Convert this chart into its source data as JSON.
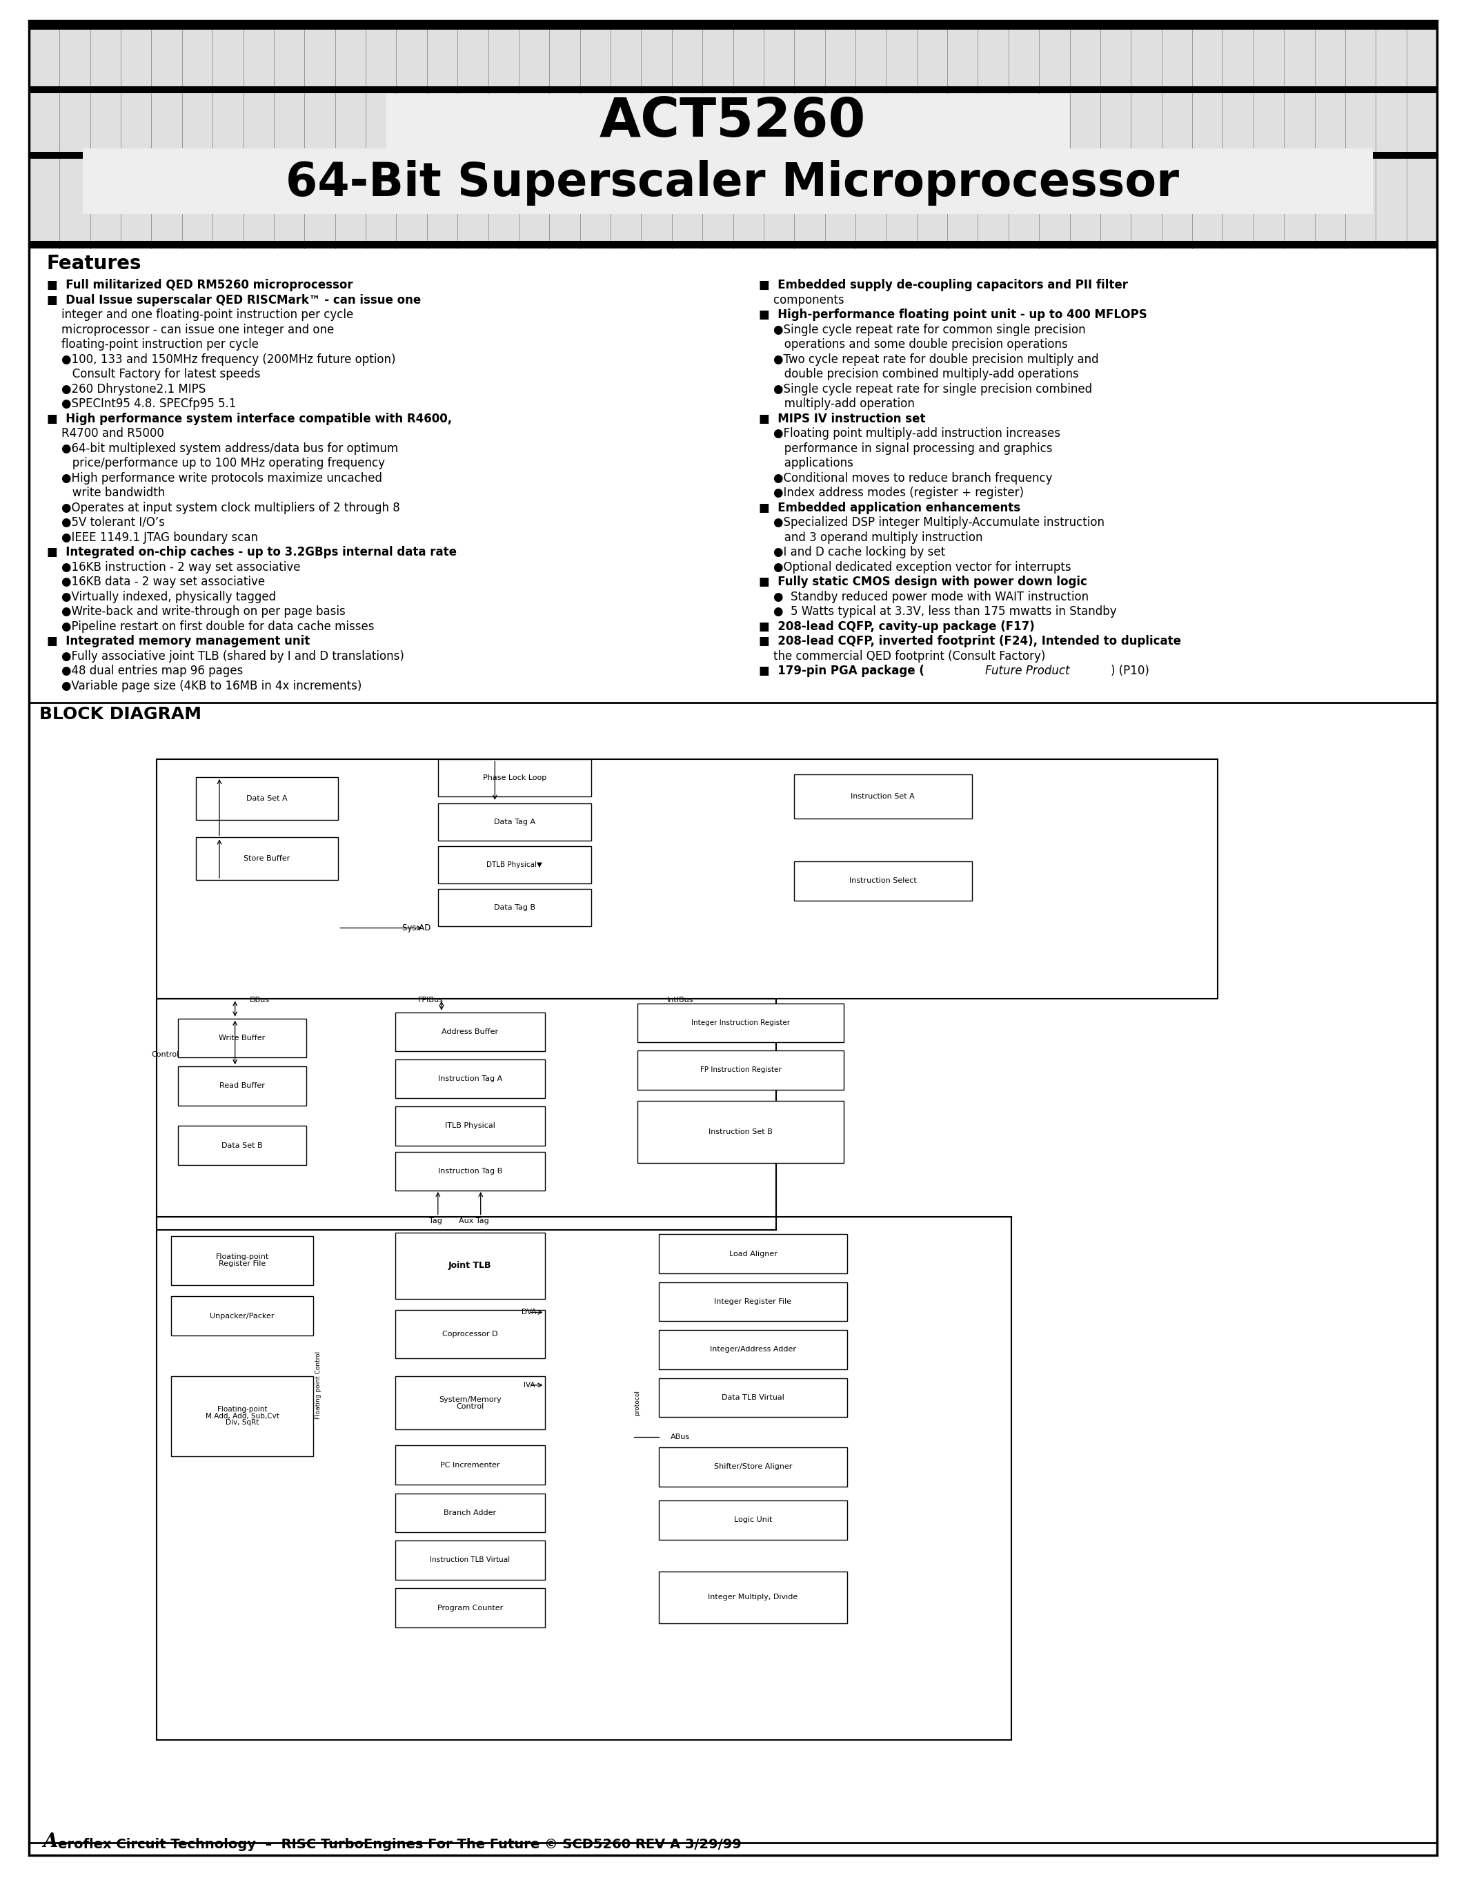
{
  "title1": "ACT5260",
  "title2": "64-Bit Superscaler Microprocessor",
  "bg_color": "#ffffff",
  "features_header": "Features",
  "footer_italic": "A",
  "footer_rest": "eroflex Circuit Technology  –  RISC TurboEngines For The Future © SCD5260 REV A 3/29/99",
  "left_col": [
    [
      1,
      "■  Full militarized QED RM5260 microprocessor"
    ],
    [
      1,
      "■  Dual Issue superscalar QED RISCMark™ - can issue one"
    ],
    [
      0,
      "    integer and one floating-point instruction per cycle"
    ],
    [
      0,
      "    microprocessor - can issue one integer and one"
    ],
    [
      0,
      "    floating-point instruction per cycle"
    ],
    [
      0,
      "    ●100, 133 and 150MHz frequency (200MHz future option)"
    ],
    [
      0,
      "       Consult Factory for latest speeds"
    ],
    [
      0,
      "    ●260 Dhrystone2.1 MIPS"
    ],
    [
      0,
      "    ●SPECInt95 4.8. SPECfp95 5.1"
    ],
    [
      1,
      "■  High performance system interface compatible with R4600,"
    ],
    [
      0,
      "    R4700 and R5000"
    ],
    [
      0,
      "    ●64-bit multiplexed system address/data bus for optimum"
    ],
    [
      0,
      "       price/performance up to 100 MHz operating frequency"
    ],
    [
      0,
      "    ●High performance write protocols maximize uncached"
    ],
    [
      0,
      "       write bandwidth"
    ],
    [
      0,
      "    ●Operates at input system clock multipliers of 2 through 8"
    ],
    [
      0,
      "    ●5V tolerant I/O’s"
    ],
    [
      0,
      "    ●IEEE 1149.1 JTAG boundary scan"
    ],
    [
      1,
      "■  Integrated on-chip caches - up to 3.2GBps internal data rate"
    ],
    [
      0,
      "    ●16KB instruction - 2 way set associative"
    ],
    [
      0,
      "    ●16KB data - 2 way set associative"
    ],
    [
      0,
      "    ●Virtually indexed, physically tagged"
    ],
    [
      0,
      "    ●Write-back and write-through on per page basis"
    ],
    [
      0,
      "    ●Pipeline restart on first double for data cache misses"
    ],
    [
      1,
      "■  Integrated memory management unit"
    ],
    [
      0,
      "    ●Fully associative joint TLB (shared by I and D translations)"
    ],
    [
      0,
      "    ●48 dual entries map 96 pages"
    ],
    [
      0,
      "    ●Variable page size (4KB to 16MB in 4x increments)"
    ]
  ],
  "right_col": [
    [
      1,
      "■  Embedded supply de-coupling capacitors and PII filter"
    ],
    [
      0,
      "    components"
    ],
    [
      1,
      "■  High-performance floating point unit - up to 400 MFLOPS"
    ],
    [
      0,
      "    ●Single cycle repeat rate for common single precision"
    ],
    [
      0,
      "       operations and some double precision operations"
    ],
    [
      0,
      "    ●Two cycle repeat rate for double precision multiply and"
    ],
    [
      0,
      "       double precision combined multiply-add operations"
    ],
    [
      0,
      "    ●Single cycle repeat rate for single precision combined"
    ],
    [
      0,
      "       multiply-add operation"
    ],
    [
      1,
      "■  MIPS IV instruction set"
    ],
    [
      0,
      "    ●Floating point multiply-add instruction increases"
    ],
    [
      0,
      "       performance in signal processing and graphics"
    ],
    [
      0,
      "       applications"
    ],
    [
      0,
      "    ●Conditional moves to reduce branch frequency"
    ],
    [
      0,
      "    ●Index address modes (register + register)"
    ],
    [
      1,
      "■  Embedded application enhancements"
    ],
    [
      0,
      "    ●Specialized DSP integer Multiply-Accumulate instruction"
    ],
    [
      0,
      "       and 3 operand multiply instruction"
    ],
    [
      0,
      "    ●I and D cache locking by set"
    ],
    [
      0,
      "    ●Optional dedicated exception vector for interrupts"
    ],
    [
      1,
      "■  Fully static CMOS design with power down logic"
    ],
    [
      0,
      "    ●  Standby reduced power mode with WAIT instruction"
    ],
    [
      0,
      "    ●  5 Watts typical at 3.3V, less than 175 mwatts in Standby"
    ],
    [
      1,
      "■  208-lead CQFP, cavity-up package (F17)"
    ],
    [
      1,
      "■  208-lead CQFP, inverted footprint (F24), Intended to duplicate"
    ],
    [
      0,
      "    the commercial QED footprint (Consult Factory)"
    ],
    [
      2,
      "■  179-pin PGA package (Future Product) (P10)"
    ],
    [
      "",
      ""
    ]
  ],
  "block_diagram_title": "BLOCK DIAGRAM"
}
